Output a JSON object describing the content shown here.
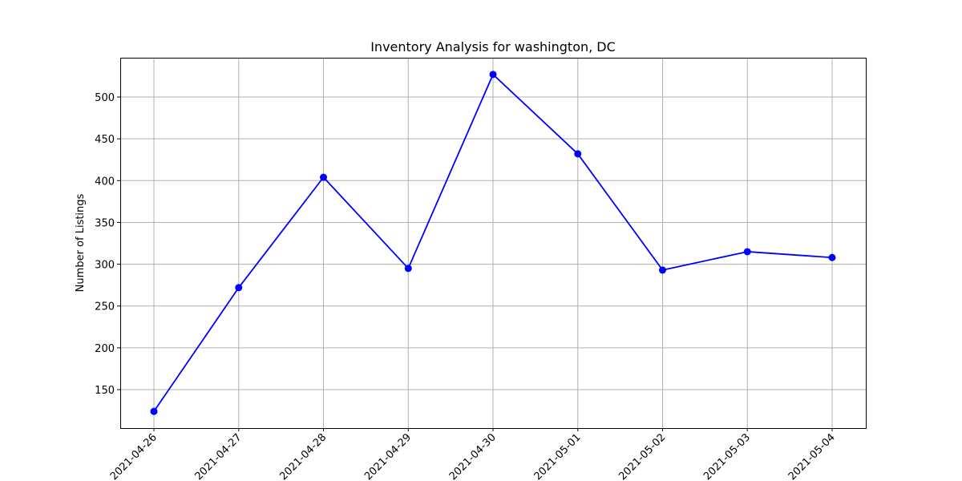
{
  "chart_data": {
    "type": "line",
    "title": "Inventory Analysis for washington, DC",
    "xlabel": "",
    "ylabel": "Number of Listings",
    "categories": [
      "2021-04-26",
      "2021-04-27",
      "2021-04-28",
      "2021-04-29",
      "2021-04-30",
      "2021-05-01",
      "2021-05-02",
      "2021-05-03",
      "2021-05-04"
    ],
    "series": [
      {
        "values": [
          124,
          272,
          404,
          295,
          527,
          432,
          293,
          315,
          308
        ],
        "color": "#0000ff",
        "marker": "circle"
      }
    ],
    "ylim": [
      104,
      547
    ],
    "yticks": [
      150,
      200,
      250,
      300,
      350,
      400,
      450,
      500
    ],
    "xtick_rotation": 45,
    "grid": true,
    "grid_color": "#b0b0b0",
    "legend": "none"
  }
}
